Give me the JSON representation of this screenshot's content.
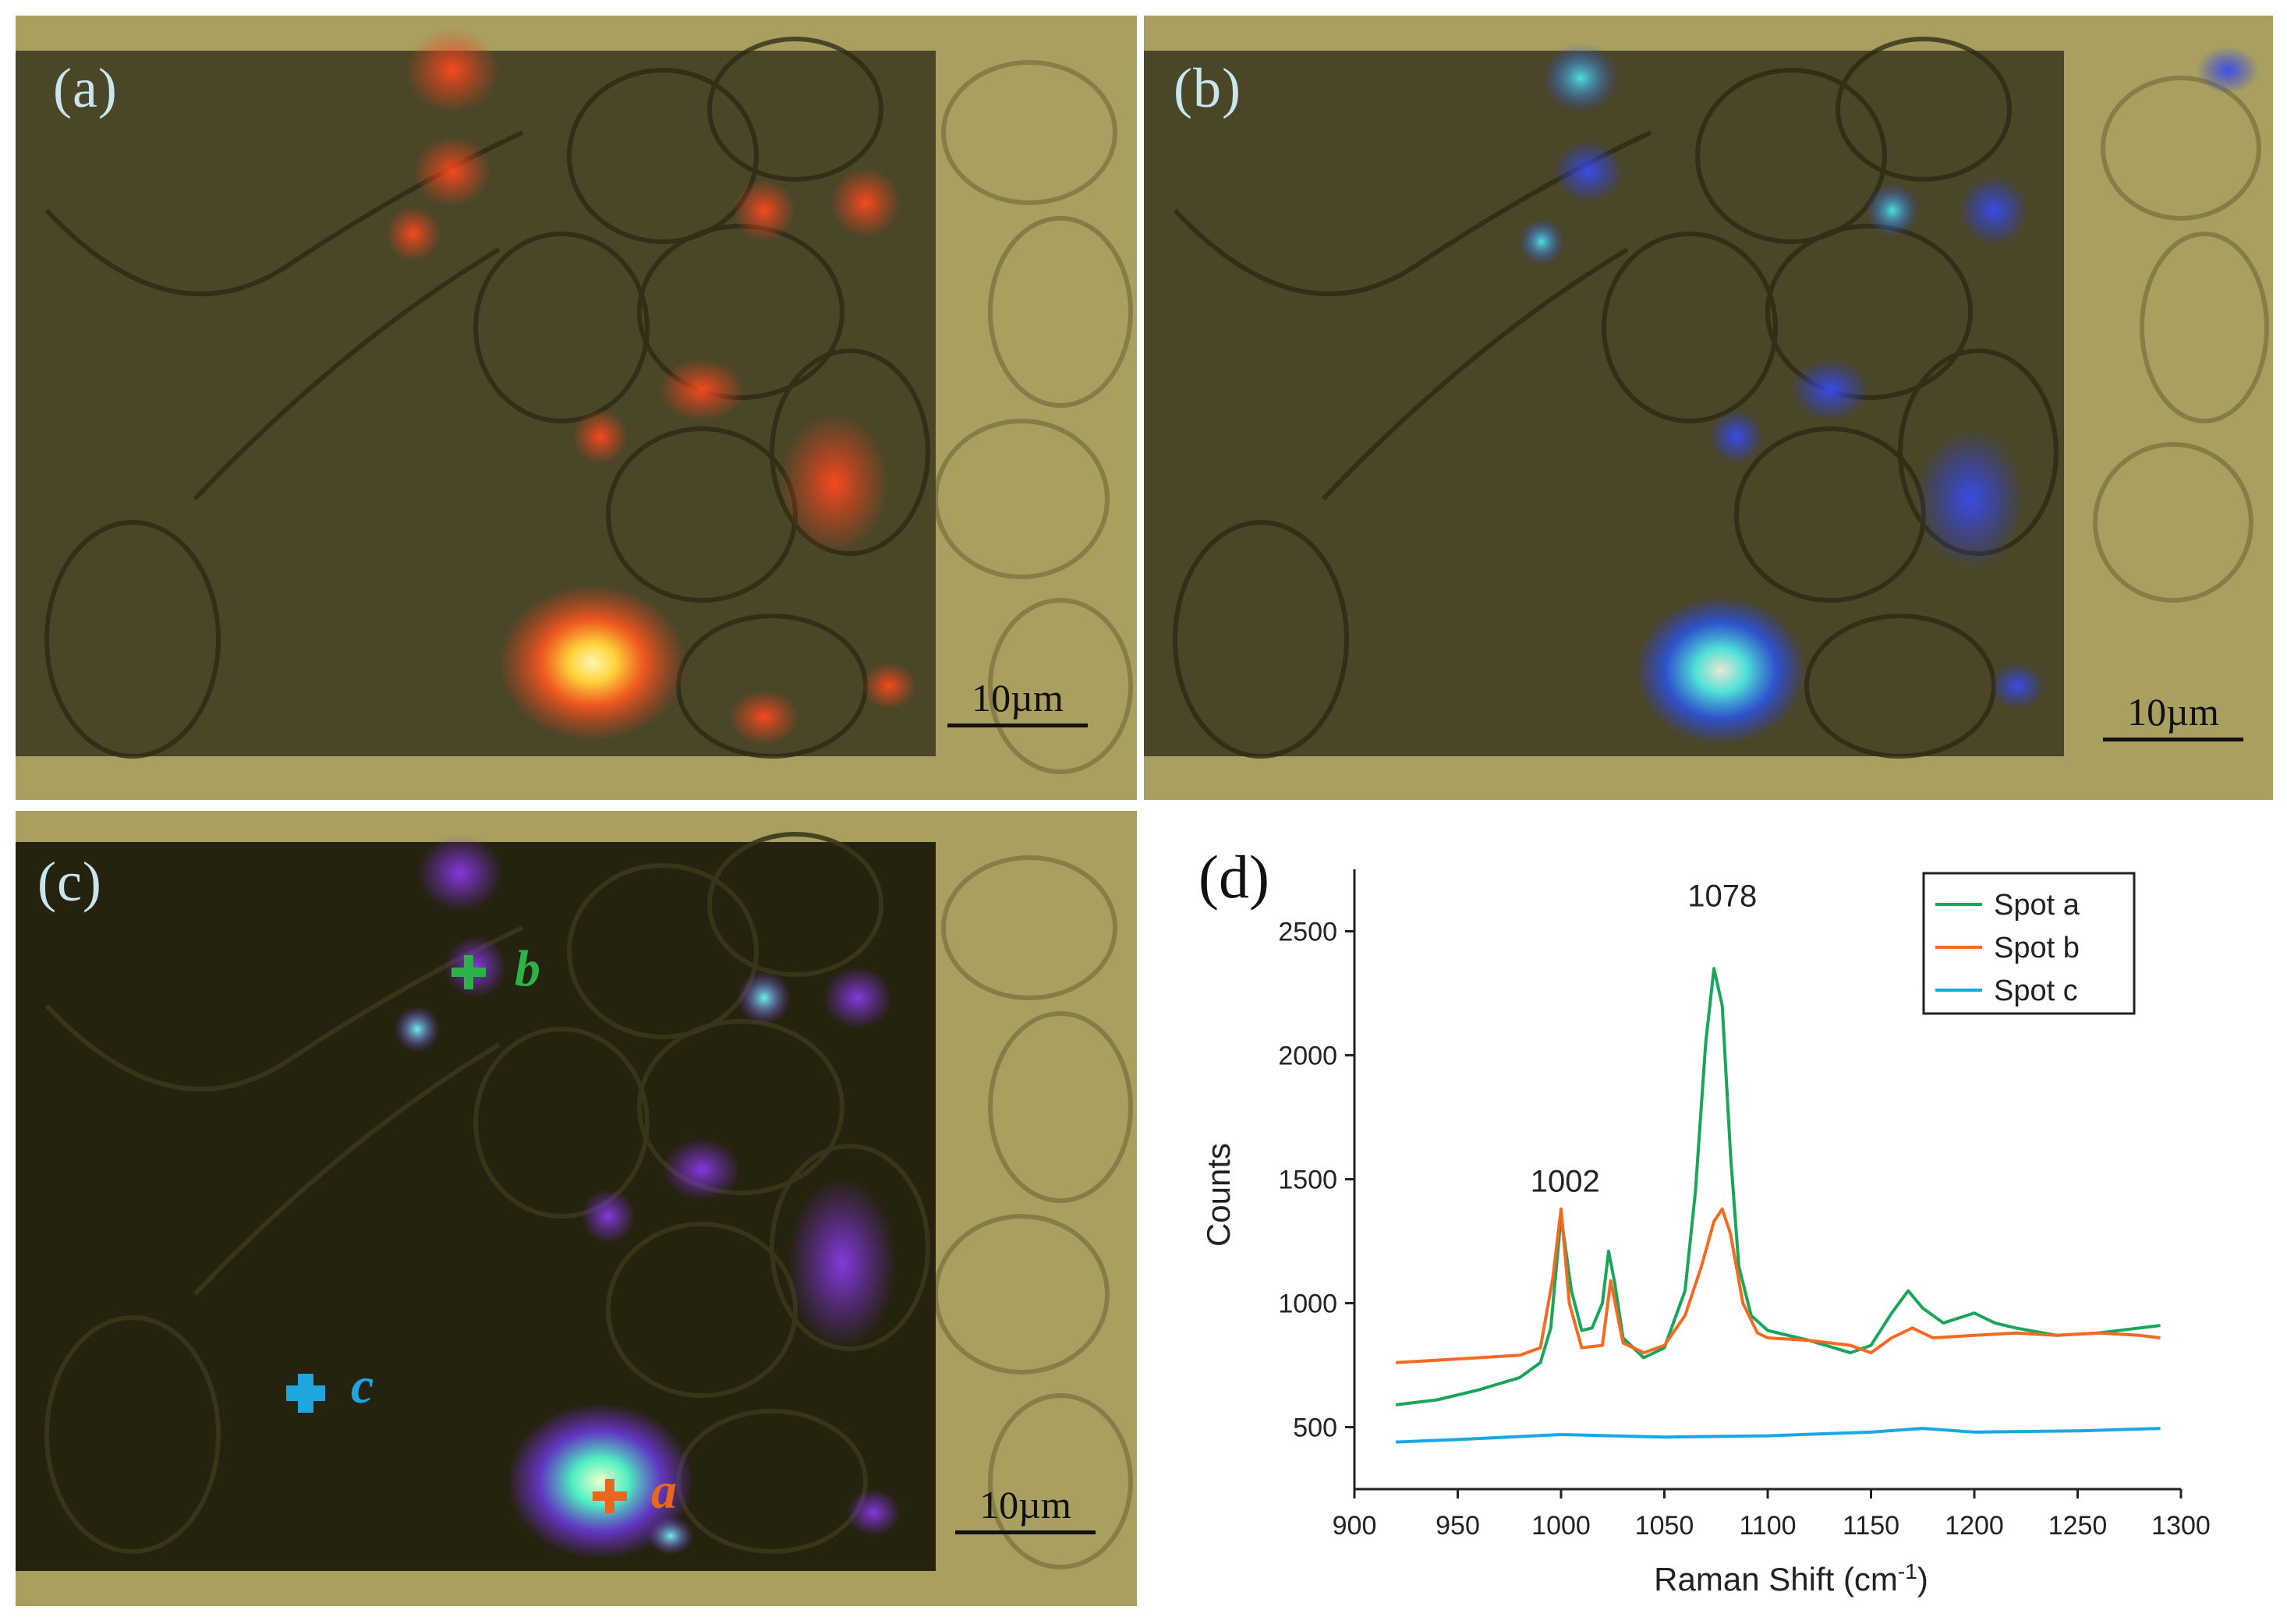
{
  "panels": {
    "a": {
      "label": "(a)",
      "scale_label": "10µm",
      "overlay_color": "#e8421e"
    },
    "b": {
      "label": "(b)",
      "scale_label": "10µm",
      "overlay_color": "#2a3ee8"
    },
    "c": {
      "label": "(c)",
      "scale_label": "10µm",
      "overlay_color": "#7a2fd8",
      "markers": [
        {
          "id": "a",
          "label": "a",
          "color": "#e8661e"
        },
        {
          "id": "b",
          "label": "b",
          "color": "#2bb34a"
        },
        {
          "id": "c",
          "label": "c",
          "color": "#1fa6e0"
        }
      ]
    },
    "d": {
      "label": "(d)"
    }
  },
  "chart_data": {
    "type": "line",
    "title": "",
    "xlabel": "Raman Shift (cm",
    "xlabel_sup": "-1",
    "xlabel_suffix": ")",
    "ylabel": "Counts",
    "xlim": [
      900,
      1300
    ],
    "ylim": [
      250,
      2750
    ],
    "xticks": [
      900,
      950,
      1000,
      1050,
      1100,
      1150,
      1200,
      1250,
      1300
    ],
    "yticks": [
      500,
      1000,
      1500,
      2000,
      2500
    ],
    "legend_position": "top-right",
    "annotations": [
      {
        "text": "1002",
        "x": 1002,
        "y": 1450
      },
      {
        "text": "1078",
        "x": 1078,
        "y": 2600
      }
    ],
    "series": [
      {
        "name": "Spot a",
        "color": "#1aa55a",
        "x": [
          920,
          940,
          960,
          980,
          990,
          995,
          1000,
          1005,
          1010,
          1015,
          1020,
          1023,
          1026,
          1030,
          1040,
          1050,
          1060,
          1065,
          1070,
          1074,
          1078,
          1082,
          1086,
          1092,
          1100,
          1120,
          1140,
          1150,
          1160,
          1168,
          1175,
          1185,
          1200,
          1210,
          1220,
          1240,
          1260,
          1280,
          1290
        ],
        "y": [
          590,
          610,
          650,
          700,
          760,
          900,
          1350,
          1050,
          890,
          900,
          1000,
          1210,
          1080,
          860,
          780,
          820,
          1050,
          1450,
          2050,
          2350,
          2200,
          1600,
          1150,
          950,
          890,
          850,
          800,
          830,
          960,
          1050,
          980,
          920,
          960,
          920,
          900,
          870,
          880,
          900,
          910
        ]
      },
      {
        "name": "Spot b",
        "color": "#f36b21",
        "x": [
          920,
          940,
          960,
          980,
          990,
          996,
          1000,
          1004,
          1010,
          1020,
          1024,
          1030,
          1040,
          1050,
          1060,
          1068,
          1074,
          1078,
          1082,
          1088,
          1095,
          1100,
          1120,
          1140,
          1150,
          1160,
          1170,
          1180,
          1200,
          1220,
          1240,
          1260,
          1280,
          1290
        ],
        "y": [
          760,
          770,
          780,
          790,
          820,
          1100,
          1380,
          1000,
          820,
          830,
          1090,
          840,
          800,
          830,
          950,
          1150,
          1330,
          1380,
          1280,
          1000,
          880,
          860,
          850,
          830,
          800,
          860,
          900,
          860,
          870,
          880,
          870,
          880,
          870,
          860
        ]
      },
      {
        "name": "Spot c",
        "color": "#18a8e8",
        "x": [
          920,
          950,
          1000,
          1050,
          1100,
          1150,
          1175,
          1200,
          1250,
          1290
        ],
        "y": [
          440,
          450,
          470,
          460,
          465,
          480,
          495,
          480,
          485,
          495
        ]
      }
    ]
  }
}
